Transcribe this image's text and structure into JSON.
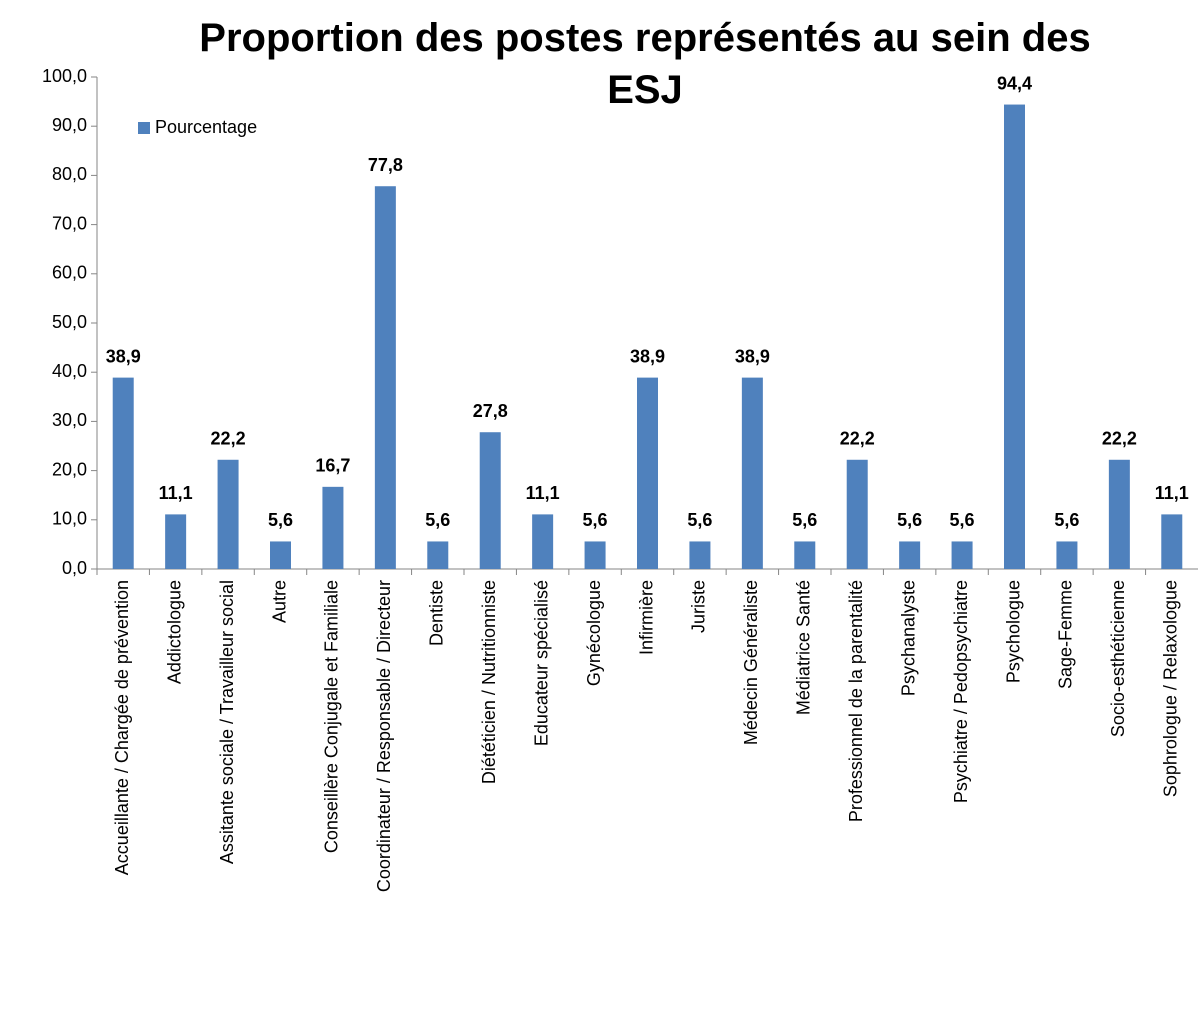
{
  "chart_data": {
    "type": "bar",
    "title": "Proportion des postes représentés au sein des ESJ",
    "categories": [
      "Accueillante / Chargée de prévention",
      "Addictologue",
      "Assitante sociale / Travailleur social",
      "Autre",
      "Conseillère Conjugale et Familiale",
      "Coordinateur / Responsable / Directeur",
      "Dentiste",
      "Diététicien / Nutritionniste",
      "Educateur spécialisé",
      "Gynécologue",
      "Infirmière",
      "Juriste",
      "Médecin Généraliste",
      "Médiatrice Santé",
      "Professionnel de la parentalité",
      "Psychanalyste",
      "Psychiatre / Pedopsychiatre",
      "Psychologue",
      "Sage-Femme",
      "Socio-esthéticienne",
      "Sophrologue / Relaxologue"
    ],
    "series": [
      {
        "name": "Pourcentage",
        "color": "#4f81bd",
        "values": [
          38.9,
          11.1,
          22.2,
          5.6,
          16.7,
          77.8,
          5.6,
          27.8,
          11.1,
          5.6,
          38.9,
          5.6,
          38.9,
          5.6,
          22.2,
          5.6,
          5.6,
          94.4,
          5.6,
          22.2,
          11.1
        ],
        "value_labels": [
          "38,9",
          "11,1",
          "22,2",
          "5,6",
          "16,7",
          "77,8",
          "5,6",
          "27,8",
          "11,1",
          "5,6",
          "38,9",
          "5,6",
          "38,9",
          "5,6",
          "22,2",
          "5,6",
          "5,6",
          "94,4",
          "5,6",
          "22,2",
          "11,1"
        ]
      }
    ],
    "ylim": [
      0,
      100
    ],
    "yticks": [
      {
        "value": 0,
        "label": "0,0"
      },
      {
        "value": 10,
        "label": "10,0"
      },
      {
        "value": 20,
        "label": "20,0"
      },
      {
        "value": 30,
        "label": "30,0"
      },
      {
        "value": 40,
        "label": "40,0"
      },
      {
        "value": 50,
        "label": "50,0"
      },
      {
        "value": 60,
        "label": "60,0"
      },
      {
        "value": 70,
        "label": "70,0"
      },
      {
        "value": 80,
        "label": "80,0"
      },
      {
        "value": 90,
        "label": "90,0"
      },
      {
        "value": 100,
        "label": "100,0"
      }
    ],
    "legend": "upper left"
  }
}
